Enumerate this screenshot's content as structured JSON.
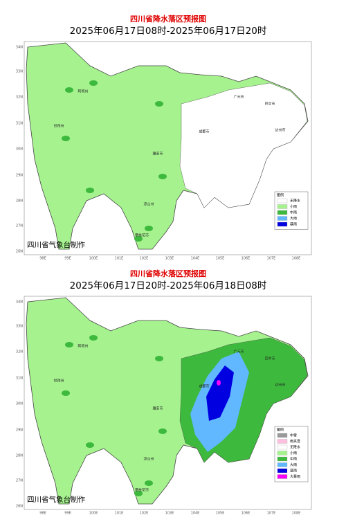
{
  "panels": [
    {
      "title": "四川省降水落区预报图",
      "subtitle": "2025年06月17日08时-2025年06月17日20时",
      "lat_labels": [
        "34N",
        "33N",
        "32N",
        "31N",
        "30N",
        "29N",
        "28N",
        "27N",
        "26N"
      ],
      "lon_labels": [
        "98E",
        "99E",
        "100E",
        "101E",
        "102E",
        "103E",
        "104E",
        "105E",
        "106E",
        "107E",
        "108E"
      ],
      "cities": [
        "阿坝州",
        "甘孜州",
        "雅安市",
        "凉山州",
        "成都市",
        "广元市",
        "巴中市",
        "达州市",
        "攀枝花市"
      ],
      "legend_title": "图例",
      "legend": [
        {
          "label": "无降水",
          "color": "#ffffff"
        },
        {
          "label": "小雨",
          "color": "#a6f28f"
        },
        {
          "label": "中雨",
          "color": "#3dba3d"
        },
        {
          "label": "大雨",
          "color": "#61b8ff"
        },
        {
          "label": "暴雨",
          "color": "#0000e1"
        }
      ],
      "footer": "四川省气象台制作"
    },
    {
      "title": "四川省降水落区预报图",
      "subtitle": "2025年06月17日20时-2025年06月18日08时",
      "lat_labels": [
        "34N",
        "33N",
        "32N",
        "31N",
        "30N",
        "29N",
        "28N",
        "27N",
        "26N"
      ],
      "lon_labels": [
        "98E",
        "99E",
        "100E",
        "101E",
        "102E",
        "103E",
        "104E",
        "105E",
        "106E",
        "107E",
        "108E"
      ],
      "cities": [
        "阿坝州",
        "甘孜州",
        "雅安市",
        "凉山州",
        "成都市",
        "广元市",
        "巴中市",
        "达州市",
        "攀枝花市"
      ],
      "legend_title": "图例",
      "legend": [
        {
          "label": "中雪",
          "color": "#999999"
        },
        {
          "label": "雨夹雪",
          "color": "#ffc0e0"
        },
        {
          "label": "无降水",
          "color": "#ffffff"
        },
        {
          "label": "小雨",
          "color": "#a6f28f"
        },
        {
          "label": "中雨",
          "color": "#3dba3d"
        },
        {
          "label": "大雨",
          "color": "#61b8ff"
        },
        {
          "label": "暴雨",
          "color": "#0000e1"
        },
        {
          "label": "大暴雨",
          "color": "#fa00fa"
        }
      ],
      "footer": "四川省气象台制作"
    }
  ]
}
